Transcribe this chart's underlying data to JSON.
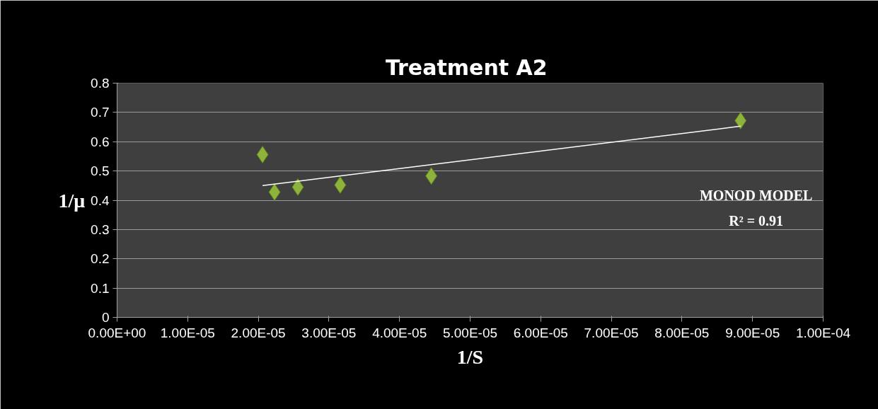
{
  "chart_data": {
    "type": "scatter",
    "title": "Treatment  A2",
    "xlabel": "1/S",
    "ylabel": "1/μ",
    "annotations": [
      "MONOD MODEL",
      "R² = 0.91"
    ],
    "series": [
      {
        "color": "#8db33a",
        "marker": "diamond",
        "x": [
          2.06e-05,
          2.23e-05,
          2.56e-05,
          3.16e-05,
          4.45e-05,
          8.83e-05
        ],
        "values": [
          0.556,
          0.428,
          0.445,
          0.452,
          0.483,
          0.672
        ]
      },
      {
        "type": "line",
        "color": "#ffffff",
        "x": [
          2.06e-05,
          8.83e-05
        ],
        "values": [
          0.45,
          0.653
        ]
      }
    ],
    "xlim": [
      0,
      0.0001
    ],
    "xticks": [
      {
        "value": 0,
        "label": "0.00E+00"
      },
      {
        "value": 1e-05,
        "label": "1.00E-05"
      },
      {
        "value": 2e-05,
        "label": "2.00E-05"
      },
      {
        "value": 3e-05,
        "label": "3.00E-05"
      },
      {
        "value": 4e-05,
        "label": "4.00E-05"
      },
      {
        "value": 5e-05,
        "label": "5.00E-05"
      },
      {
        "value": 6e-05,
        "label": "6.00E-05"
      },
      {
        "value": 7e-05,
        "label": "7.00E-05"
      },
      {
        "value": 8e-05,
        "label": "8.00E-05"
      },
      {
        "value": 9e-05,
        "label": "9.00E-05"
      },
      {
        "value": 0.0001,
        "label": "1.00E-04"
      }
    ],
    "ylim": [
      0,
      0.8
    ],
    "yticks": [
      0,
      0.1,
      0.2,
      0.3,
      0.4,
      0.5,
      0.6,
      0.7,
      0.8
    ],
    "grid": "y"
  }
}
